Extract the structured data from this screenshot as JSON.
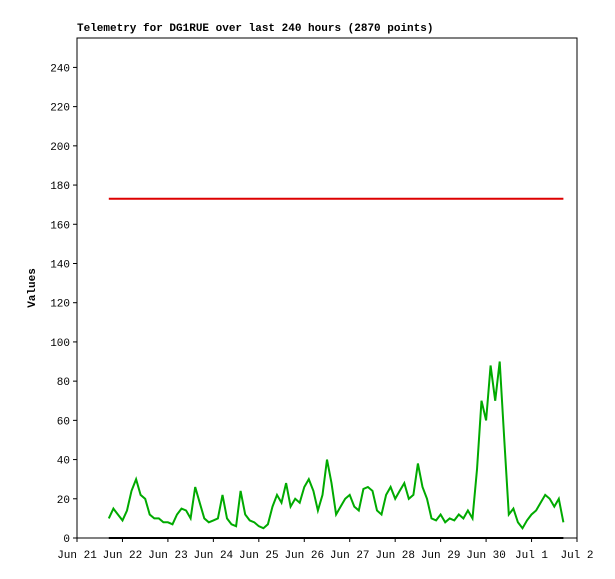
{
  "chart_data": {
    "type": "line",
    "title": "Telemetry for DG1RUE over last 240 hours (2870 points)",
    "ylabel": "Values",
    "xlim": [
      0,
      11
    ],
    "xticks": [
      {
        "value": 0,
        "label": "Jun 21"
      },
      {
        "value": 1,
        "label": "Jun 22"
      },
      {
        "value": 2,
        "label": "Jun 23"
      },
      {
        "value": 3,
        "label": "Jun 24"
      },
      {
        "value": 4,
        "label": "Jun 25"
      },
      {
        "value": 5,
        "label": "Jun 26"
      },
      {
        "value": 6,
        "label": "Jun 27"
      },
      {
        "value": 7,
        "label": "Jun 28"
      },
      {
        "value": 8,
        "label": "Jun 29"
      },
      {
        "value": 9,
        "label": "Jun 30"
      },
      {
        "value": 10,
        "label": "Jul 1"
      },
      {
        "value": 11,
        "label": "Jul 2"
      }
    ],
    "ylim": [
      0,
      255
    ],
    "yticks": [
      0,
      20,
      40,
      60,
      80,
      100,
      120,
      140,
      160,
      180,
      200,
      220,
      240
    ],
    "series": [
      {
        "color": "#dd0000",
        "x": [
          0.7,
          10.7
        ],
        "values": [
          173,
          173
        ]
      },
      {
        "color": "#00aa00",
        "x": [
          0.7,
          0.8,
          0.9,
          1.0,
          1.1,
          1.2,
          1.3,
          1.4,
          1.5,
          1.6,
          1.7,
          1.8,
          1.9,
          2.0,
          2.1,
          2.2,
          2.3,
          2.4,
          2.5,
          2.6,
          2.7,
          2.8,
          2.9,
          3.0,
          3.1,
          3.2,
          3.3,
          3.4,
          3.5,
          3.6,
          3.7,
          3.8,
          3.9,
          4.0,
          4.1,
          4.2,
          4.3,
          4.4,
          4.5,
          4.6,
          4.7,
          4.8,
          4.9,
          5.0,
          5.1,
          5.2,
          5.3,
          5.4,
          5.5,
          5.6,
          5.7,
          5.8,
          5.9,
          6.0,
          6.1,
          6.2,
          6.3,
          6.4,
          6.5,
          6.6,
          6.7,
          6.8,
          6.9,
          7.0,
          7.1,
          7.2,
          7.3,
          7.4,
          7.5,
          7.6,
          7.7,
          7.8,
          7.9,
          8.0,
          8.1,
          8.2,
          8.3,
          8.4,
          8.5,
          8.6,
          8.7,
          8.8,
          8.9,
          9.0,
          9.1,
          9.2,
          9.3,
          9.4,
          9.5,
          9.6,
          9.7,
          9.8,
          9.9,
          10.0,
          10.1,
          10.2,
          10.3,
          10.4,
          10.5,
          10.6,
          10.7
        ],
        "values": [
          10,
          15,
          12,
          9,
          14,
          24,
          30,
          22,
          20,
          12,
          10,
          10,
          8,
          8,
          7,
          12,
          15,
          14,
          10,
          26,
          18,
          10,
          8,
          9,
          10,
          22,
          10,
          7,
          6,
          24,
          12,
          9,
          8,
          6,
          5,
          7,
          16,
          22,
          18,
          28,
          16,
          20,
          18,
          26,
          30,
          24,
          14,
          22,
          40,
          28,
          12,
          16,
          20,
          22,
          16,
          14,
          25,
          26,
          24,
          14,
          12,
          22,
          26,
          20,
          24,
          28,
          20,
          22,
          38,
          26,
          20,
          10,
          9,
          12,
          8,
          10,
          9,
          12,
          10,
          14,
          10,
          35,
          70,
          60,
          88,
          70,
          90,
          50,
          12,
          15,
          8,
          5,
          9,
          12,
          14,
          18,
          22,
          20,
          16,
          20,
          8
        ]
      },
      {
        "color": "#000000",
        "x": [
          0.7,
          10.7
        ],
        "values": [
          0,
          0
        ]
      }
    ]
  }
}
